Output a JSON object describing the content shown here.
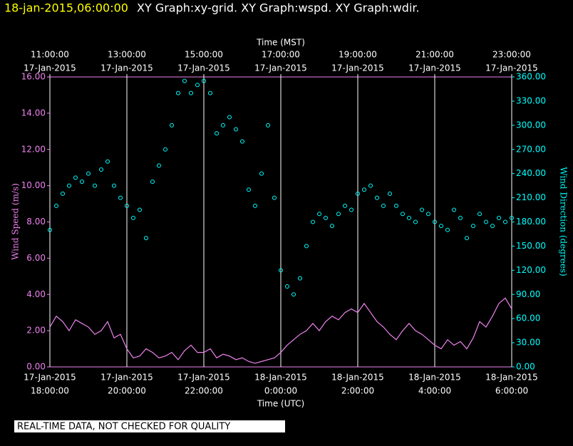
{
  "header": {
    "timestamp": "18-jan-2015,06:00:00",
    "graphs": "XY Graph:xy-grid.  XY Graph:wspd.  XY Graph:wdir."
  },
  "footer": "REAL-TIME DATA, NOT CHECKED FOR QUALITY",
  "chart_data": {
    "type": "line-scatter",
    "xlabel": "Time (UTC)",
    "x2label": "Time (MST)",
    "ylabel": "Wind Speed (m/s)",
    "y2label": "Wind Direction (degrees)",
    "xlim": [
      "2015-01-17T18:00",
      "2015-01-18T06:00"
    ],
    "xticks": [
      {
        "value": "2015-01-17T18:00",
        "label": [
          "17-Jan-2015",
          "18:00:00"
        ]
      },
      {
        "value": "2015-01-17T20:00",
        "label": [
          "17-Jan-2015",
          "20:00:00"
        ]
      },
      {
        "value": "2015-01-17T22:00",
        "label": [
          "17-Jan-2015",
          "22:00:00"
        ]
      },
      {
        "value": "2015-01-18T00:00",
        "label": [
          "18-Jan-2015",
          "0:00:00"
        ]
      },
      {
        "value": "2015-01-18T02:00",
        "label": [
          "18-Jan-2015",
          "2:00:00"
        ]
      },
      {
        "value": "2015-01-18T04:00",
        "label": [
          "18-Jan-2015",
          "4:00:00"
        ]
      },
      {
        "value": "2015-01-18T06:00",
        "label": [
          "18-Jan-2015",
          "6:00:00"
        ]
      }
    ],
    "x2ticks": [
      {
        "value": "2015-01-17T18:00",
        "label": [
          "11:00:00",
          "17-Jan-2015"
        ]
      },
      {
        "value": "2015-01-17T20:00",
        "label": [
          "13:00:00",
          "17-Jan-2015"
        ]
      },
      {
        "value": "2015-01-17T22:00",
        "label": [
          "15:00:00",
          "17-Jan-2015"
        ]
      },
      {
        "value": "2015-01-18T00:00",
        "label": [
          "17:00:00",
          "17-Jan-2015"
        ]
      },
      {
        "value": "2015-01-18T02:00",
        "label": [
          "19:00:00",
          "17-Jan-2015"
        ]
      },
      {
        "value": "2015-01-18T04:00",
        "label": [
          "21:00:00",
          "17-Jan-2015"
        ]
      },
      {
        "value": "2015-01-18T06:00",
        "label": [
          "23:00:00",
          "17-Jan-2015"
        ]
      }
    ],
    "ylim": [
      0,
      16
    ],
    "yticks": [
      {
        "value": 0,
        "label": "0.00"
      },
      {
        "value": 2,
        "label": "2.00"
      },
      {
        "value": 4,
        "label": "4.00"
      },
      {
        "value": 6,
        "label": "6.00"
      },
      {
        "value": 8,
        "label": "8.00"
      },
      {
        "value": 10,
        "label": "10.00"
      },
      {
        "value": 12,
        "label": "12.00"
      },
      {
        "value": 14,
        "label": "14.00"
      },
      {
        "value": 16,
        "label": "16.00"
      }
    ],
    "y2lim": [
      0,
      360
    ],
    "y2ticks": [
      {
        "value": 0,
        "label": "0.00"
      },
      {
        "value": 30,
        "label": "30.00"
      },
      {
        "value": 60,
        "label": "60.00"
      },
      {
        "value": 90,
        "label": "90.00"
      },
      {
        "value": 120,
        "label": "120.00"
      },
      {
        "value": 150,
        "label": "150.00"
      },
      {
        "value": 180,
        "label": "180.00"
      },
      {
        "value": 210,
        "label": "210.00"
      },
      {
        "value": 240,
        "label": "240.00"
      },
      {
        "value": 270,
        "label": "270.00"
      },
      {
        "value": 300,
        "label": "300.00"
      },
      {
        "value": 330,
        "label": "330.00"
      },
      {
        "value": 360,
        "label": "360.00"
      }
    ],
    "grid": true,
    "x": [
      "2015-01-17T18:00",
      "2015-01-17T18:10",
      "2015-01-17T18:20",
      "2015-01-17T18:30",
      "2015-01-17T18:40",
      "2015-01-17T18:50",
      "2015-01-17T19:00",
      "2015-01-17T19:10",
      "2015-01-17T19:20",
      "2015-01-17T19:30",
      "2015-01-17T19:40",
      "2015-01-17T19:50",
      "2015-01-17T20:00",
      "2015-01-17T20:10",
      "2015-01-17T20:20",
      "2015-01-17T20:30",
      "2015-01-17T20:40",
      "2015-01-17T20:50",
      "2015-01-17T21:00",
      "2015-01-17T21:10",
      "2015-01-17T21:20",
      "2015-01-17T21:30",
      "2015-01-17T21:40",
      "2015-01-17T21:50",
      "2015-01-17T22:00",
      "2015-01-17T22:10",
      "2015-01-17T22:20",
      "2015-01-17T22:30",
      "2015-01-17T22:40",
      "2015-01-17T22:50",
      "2015-01-17T23:00",
      "2015-01-17T23:10",
      "2015-01-17T23:20",
      "2015-01-17T23:30",
      "2015-01-17T23:40",
      "2015-01-17T23:50",
      "2015-01-18T00:00",
      "2015-01-18T00:10",
      "2015-01-18T00:20",
      "2015-01-18T00:30",
      "2015-01-18T00:40",
      "2015-01-18T00:50",
      "2015-01-18T01:00",
      "2015-01-18T01:10",
      "2015-01-18T01:20",
      "2015-01-18T01:30",
      "2015-01-18T01:40",
      "2015-01-18T01:50",
      "2015-01-18T02:00",
      "2015-01-18T02:10",
      "2015-01-18T02:20",
      "2015-01-18T02:30",
      "2015-01-18T02:40",
      "2015-01-18T02:50",
      "2015-01-18T03:00",
      "2015-01-18T03:10",
      "2015-01-18T03:20",
      "2015-01-18T03:30",
      "2015-01-18T03:40",
      "2015-01-18T03:50",
      "2015-01-18T04:00",
      "2015-01-18T04:10",
      "2015-01-18T04:20",
      "2015-01-18T04:30",
      "2015-01-18T04:40",
      "2015-01-18T04:50",
      "2015-01-18T05:00",
      "2015-01-18T05:10",
      "2015-01-18T05:20",
      "2015-01-18T05:30",
      "2015-01-18T05:40",
      "2015-01-18T05:50",
      "2015-01-18T06:00"
    ],
    "series": [
      {
        "name": "wspd",
        "color": "#ee82ee",
        "values": [
          2.2,
          2.8,
          2.5,
          2.0,
          2.6,
          2.4,
          2.2,
          1.8,
          2.0,
          2.5,
          1.6,
          1.8,
          1.0,
          0.5,
          0.6,
          1.0,
          0.8,
          0.5,
          0.6,
          0.8,
          0.4,
          0.9,
          1.2,
          0.8,
          0.8,
          1.0,
          0.5,
          0.7,
          0.6,
          0.4,
          0.5,
          0.3,
          0.2,
          0.3,
          0.4,
          0.5,
          0.8,
          1.2,
          1.5,
          1.8,
          2.0,
          2.4,
          2.0,
          2.5,
          2.8,
          2.6,
          3.0,
          3.2,
          3.0,
          3.5,
          3.0,
          2.5,
          2.2,
          1.8,
          1.5,
          2.0,
          2.4,
          2.0,
          1.8,
          1.5,
          1.2,
          1.0,
          1.5,
          1.2,
          1.4,
          1.0,
          1.6,
          2.5,
          2.2,
          2.8,
          3.5,
          3.8,
          3.2
        ]
      },
      {
        "name": "wdir",
        "color": "#00ffff",
        "axis": "y2",
        "values": [
          170,
          200,
          215,
          225,
          235,
          230,
          240,
          225,
          245,
          255,
          225,
          210,
          200,
          185,
          195,
          160,
          230,
          250,
          270,
          300,
          340,
          355,
          340,
          350,
          355,
          340,
          290,
          300,
          310,
          295,
          280,
          220,
          200,
          240,
          300,
          210,
          120,
          100,
          90,
          110,
          150,
          180,
          190,
          185,
          175,
          190,
          200,
          195,
          215,
          220,
          225,
          210,
          200,
          215,
          200,
          190,
          185,
          180,
          195,
          190,
          180,
          175,
          170,
          195,
          185,
          160,
          175,
          190,
          180,
          175,
          185,
          180,
          185
        ]
      }
    ]
  }
}
